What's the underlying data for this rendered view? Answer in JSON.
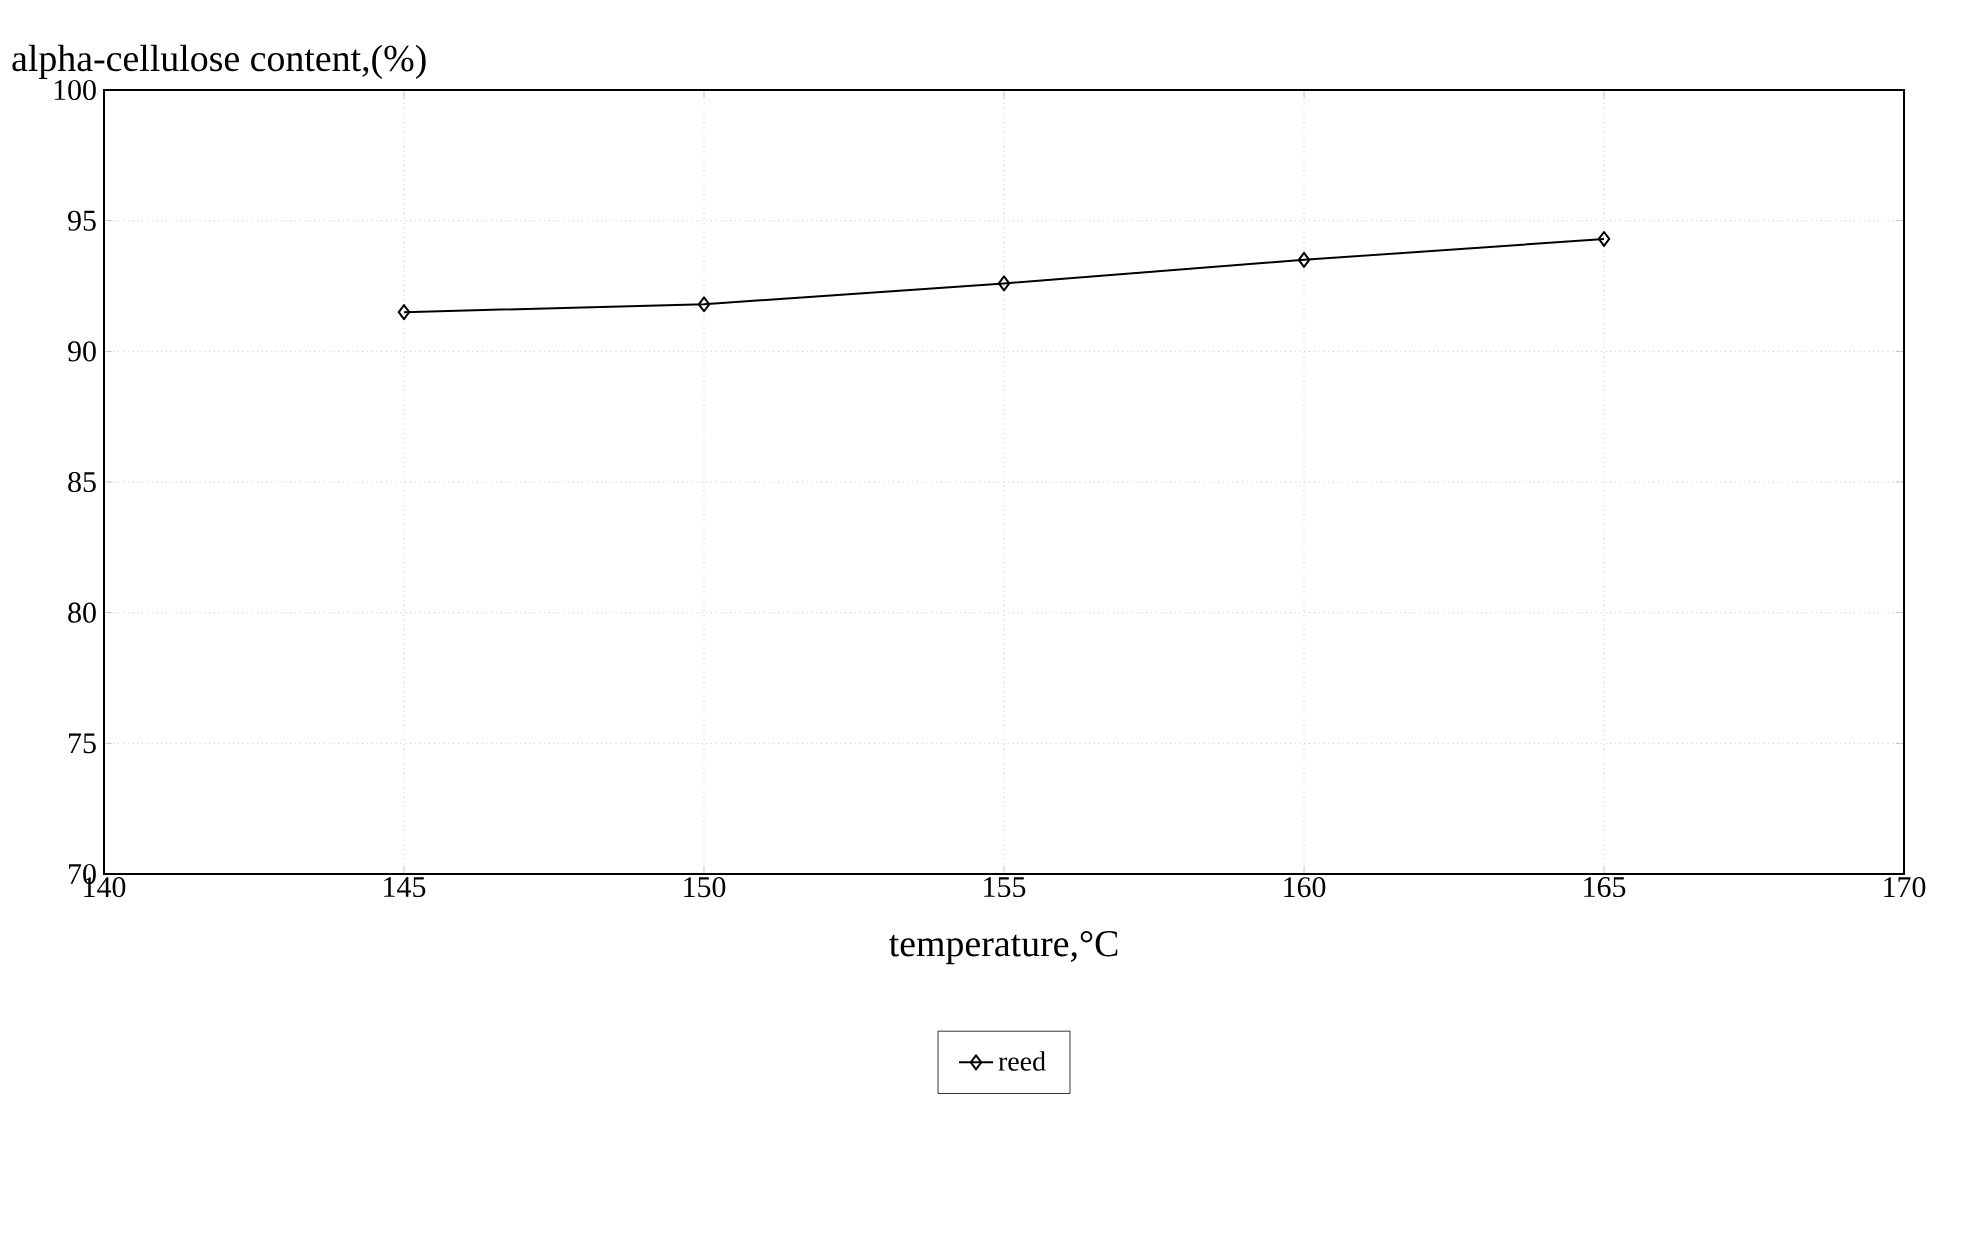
{
  "chart_data": {
    "type": "line",
    "ylabel": "alpha-cellulose content,(%)",
    "xlabel": "temperature,°C",
    "x": [
      145,
      150,
      155,
      160,
      165
    ],
    "series": [
      {
        "name": "reed",
        "color": "#000000",
        "values": [
          91.5,
          91.8,
          92.6,
          93.5,
          94.3
        ]
      }
    ],
    "xlim": [
      140,
      170
    ],
    "xticks": [
      140,
      145,
      150,
      155,
      160,
      165,
      170
    ],
    "ylim": [
      70,
      100
    ],
    "yticks": [
      70,
      75,
      80,
      85,
      90,
      95,
      100
    ],
    "grid": true,
    "legend": "bottom",
    "marker": "diamond",
    "line_style": "solid"
  }
}
